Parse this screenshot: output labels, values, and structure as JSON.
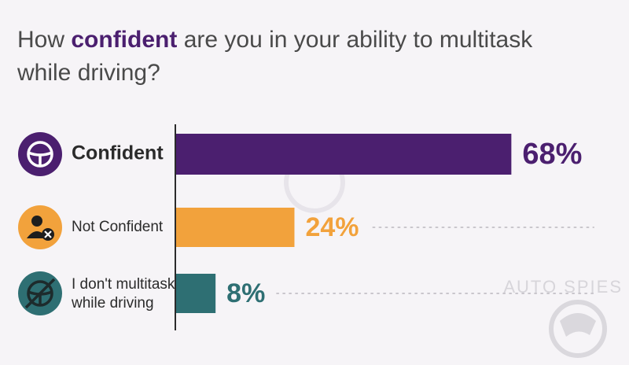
{
  "title": {
    "before": "How ",
    "emphasis": "confident",
    "after": " are you in your ability to multitask while driving?"
  },
  "watermark": "AUTO SPIES",
  "colors": {
    "title_text": "#4a4a4a",
    "emphasis": "#4b1f6f",
    "axis": "#2b2b2b",
    "label": "#2b2b2b",
    "dots": "#c9c6cc"
  },
  "chart_data": {
    "type": "bar",
    "orientation": "horizontal",
    "categories": [
      "Confident",
      "Not Confident",
      "I don't multitask while driving"
    ],
    "values": [
      68,
      24,
      8
    ],
    "value_labels": [
      "68%",
      "24%",
      "8%"
    ],
    "colors": [
      "#4b1f6f",
      "#f2a23c",
      "#2e6f73"
    ],
    "icons": [
      "steering-wheel-icon",
      "person-x-icon",
      "no-steering-wheel-icon"
    ],
    "xlim": [
      0,
      100
    ],
    "grid": false
  }
}
